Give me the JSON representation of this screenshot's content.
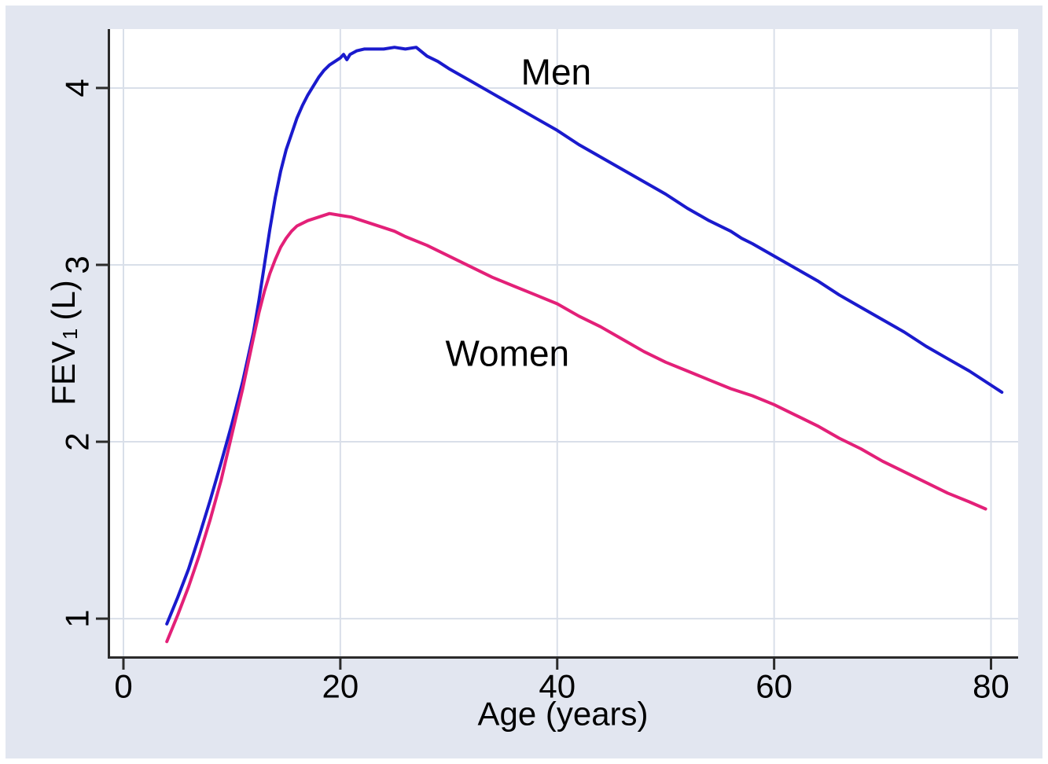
{
  "chart_data": {
    "type": "line",
    "title": "",
    "xlabel": "Age (years)",
    "ylabel": {
      "main": "FEV",
      "sub": "1",
      "unit": "(L)"
    },
    "xlim": [
      -1.45,
      82.5
    ],
    "ylim": [
      0.787,
      4.333
    ],
    "grid": true,
    "legend_position": "inline-annotations",
    "x_ticks": [
      {
        "value": 0,
        "label": "0"
      },
      {
        "value": 20,
        "label": "20"
      },
      {
        "value": 40,
        "label": "40"
      },
      {
        "value": 60,
        "label": "60"
      },
      {
        "value": 80,
        "label": "80"
      }
    ],
    "y_ticks": [
      {
        "value": 1,
        "label": "1"
      },
      {
        "value": 2,
        "label": "2"
      },
      {
        "value": 3,
        "label": "3"
      },
      {
        "value": 4,
        "label": "4"
      }
    ],
    "series": [
      {
        "name": "Men",
        "color": "#1a1acd",
        "points": [
          [
            4,
            0.97
          ],
          [
            5,
            1.12
          ],
          [
            6,
            1.28
          ],
          [
            7,
            1.47
          ],
          [
            8,
            1.67
          ],
          [
            9,
            1.88
          ],
          [
            10,
            2.1
          ],
          [
            11,
            2.34
          ],
          [
            12,
            2.62
          ],
          [
            12.5,
            2.8
          ],
          [
            13,
            3.0
          ],
          [
            13.5,
            3.2
          ],
          [
            14,
            3.38
          ],
          [
            14.5,
            3.53
          ],
          [
            15,
            3.65
          ],
          [
            15.5,
            3.74
          ],
          [
            16,
            3.83
          ],
          [
            16.5,
            3.9
          ],
          [
            17,
            3.96
          ],
          [
            17.5,
            4.01
          ],
          [
            18,
            4.06
          ],
          [
            18.5,
            4.1
          ],
          [
            19,
            4.13
          ],
          [
            19.5,
            4.15
          ],
          [
            20,
            4.17
          ],
          [
            20.3,
            4.19
          ],
          [
            20.6,
            4.16
          ],
          [
            20.9,
            4.19
          ],
          [
            21.5,
            4.21
          ],
          [
            22.2,
            4.22
          ],
          [
            23,
            4.22
          ],
          [
            24,
            4.22
          ],
          [
            25,
            4.23
          ],
          [
            26,
            4.22
          ],
          [
            27,
            4.23
          ],
          [
            28,
            4.18
          ],
          [
            29,
            4.15
          ],
          [
            30,
            4.11
          ],
          [
            32,
            4.04
          ],
          [
            34,
            3.97
          ],
          [
            36,
            3.9
          ],
          [
            38,
            3.83
          ],
          [
            40,
            3.76
          ],
          [
            42,
            3.68
          ],
          [
            44,
            3.61
          ],
          [
            46,
            3.54
          ],
          [
            48,
            3.47
          ],
          [
            50,
            3.4
          ],
          [
            52,
            3.32
          ],
          [
            54,
            3.25
          ],
          [
            56,
            3.19
          ],
          [
            57,
            3.15
          ],
          [
            58,
            3.12
          ],
          [
            60,
            3.05
          ],
          [
            62,
            2.98
          ],
          [
            64,
            2.91
          ],
          [
            66,
            2.83
          ],
          [
            68,
            2.76
          ],
          [
            70,
            2.69
          ],
          [
            72,
            2.62
          ],
          [
            74,
            2.54
          ],
          [
            76,
            2.47
          ],
          [
            78,
            2.4
          ],
          [
            80,
            2.32
          ],
          [
            81,
            2.28
          ]
        ]
      },
      {
        "name": "Women",
        "color": "#e32078",
        "points": [
          [
            4,
            0.87
          ],
          [
            5,
            1.02
          ],
          [
            6,
            1.18
          ],
          [
            7,
            1.36
          ],
          [
            8,
            1.56
          ],
          [
            9,
            1.78
          ],
          [
            10,
            2.04
          ],
          [
            11,
            2.3
          ],
          [
            12,
            2.59
          ],
          [
            12.5,
            2.73
          ],
          [
            13,
            2.85
          ],
          [
            13.5,
            2.95
          ],
          [
            14,
            3.03
          ],
          [
            14.5,
            3.1
          ],
          [
            15,
            3.15
          ],
          [
            15.5,
            3.19
          ],
          [
            16,
            3.22
          ],
          [
            17,
            3.25
          ],
          [
            18,
            3.27
          ],
          [
            19,
            3.29
          ],
          [
            20,
            3.28
          ],
          [
            21,
            3.27
          ],
          [
            22,
            3.25
          ],
          [
            23,
            3.23
          ],
          [
            24,
            3.21
          ],
          [
            25,
            3.19
          ],
          [
            26,
            3.16
          ],
          [
            28,
            3.11
          ],
          [
            30,
            3.05
          ],
          [
            32,
            2.99
          ],
          [
            34,
            2.93
          ],
          [
            36,
            2.88
          ],
          [
            38,
            2.83
          ],
          [
            40,
            2.78
          ],
          [
            42,
            2.71
          ],
          [
            44,
            2.65
          ],
          [
            46,
            2.58
          ],
          [
            48,
            2.51
          ],
          [
            50,
            2.45
          ],
          [
            52,
            2.4
          ],
          [
            54,
            2.35
          ],
          [
            56,
            2.3
          ],
          [
            58,
            2.26
          ],
          [
            60,
            2.21
          ],
          [
            62,
            2.15
          ],
          [
            64,
            2.09
          ],
          [
            66,
            2.02
          ],
          [
            68,
            1.96
          ],
          [
            70,
            1.89
          ],
          [
            72,
            1.83
          ],
          [
            74,
            1.77
          ],
          [
            76,
            1.71
          ],
          [
            78,
            1.66
          ],
          [
            79.5,
            1.62
          ]
        ]
      }
    ],
    "annotations": [
      {
        "text": "Men",
        "x": 39.9,
        "y": 4.09
      },
      {
        "text": "Women",
        "x": 35.4,
        "y": 2.5
      }
    ],
    "colors": {
      "page_background": "#ffffff",
      "figure_background": "#e2e6f0",
      "plot_background": "#ffffff",
      "grid": "#d9dfe9",
      "axis": "#2b2b2b",
      "tick_text": "#000000",
      "annotation_text": "#841b96"
    }
  }
}
